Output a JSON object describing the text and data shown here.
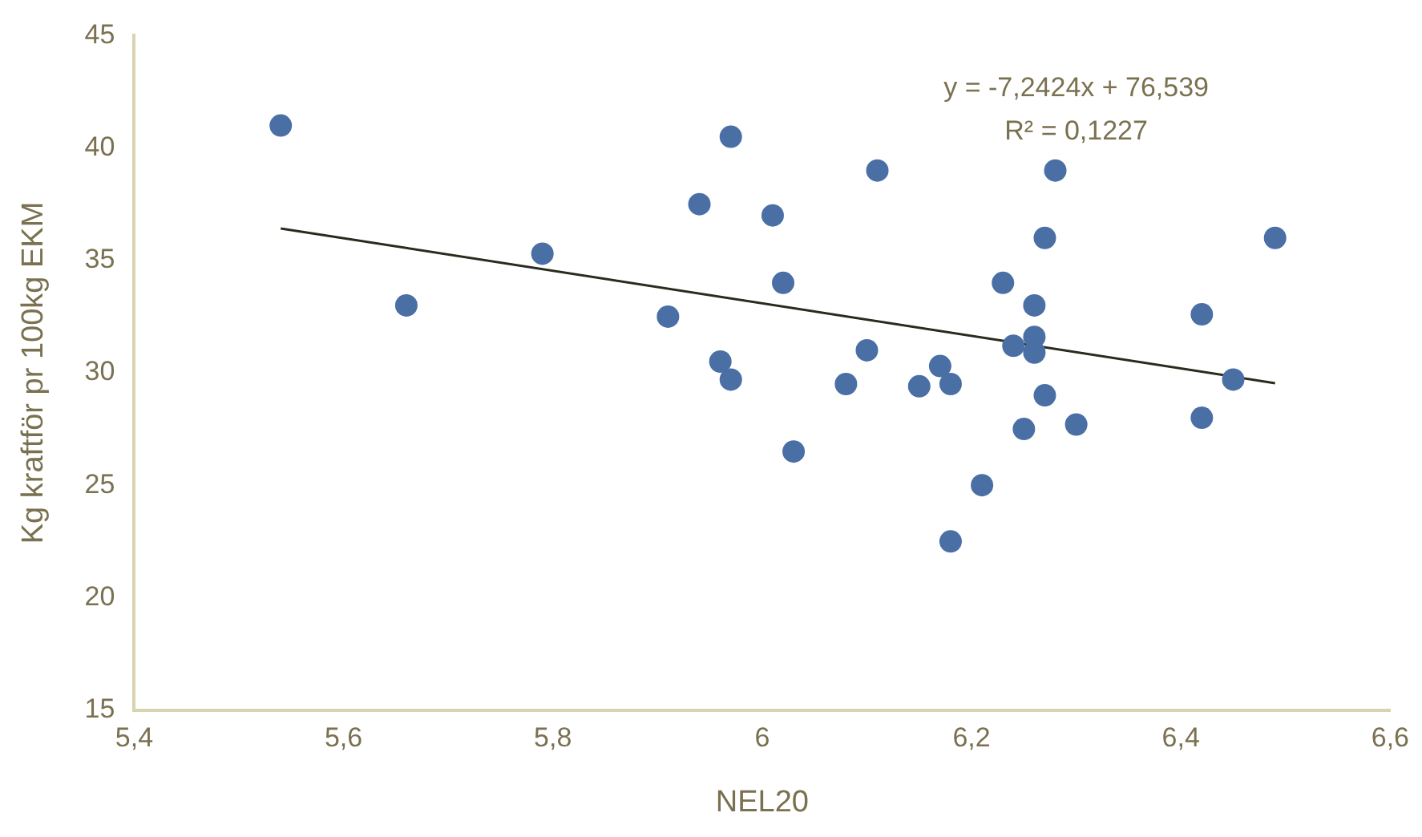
{
  "chart_data": {
    "type": "scatter",
    "xlabel": "NEL20",
    "ylabel": "Kg kraftför pr 100kg EKM",
    "annotations": [
      "y = -7,2424x + 76,539",
      "R² = 0,1227"
    ],
    "xlim": [
      5.4,
      6.6
    ],
    "xticks": [
      {
        "value": 5.4,
        "label": "5,4"
      },
      {
        "value": 5.6,
        "label": "5,6"
      },
      {
        "value": 5.8,
        "label": "5,8"
      },
      6,
      {
        "value": 6.2,
        "label": "6,2"
      },
      {
        "value": 6.4,
        "label": "6,4"
      },
      {
        "value": 6.6,
        "label": "6,6"
      }
    ],
    "ylim": [
      15,
      45
    ],
    "yticks": [
      15,
      20,
      25,
      30,
      35,
      40,
      45
    ],
    "grid": false,
    "legend": false,
    "marker": "circle",
    "series": [
      {
        "color": "#4a6fa5",
        "x": [
          5.54,
          5.66,
          5.79,
          5.91,
          5.94,
          5.96,
          5.97,
          5.97,
          6.01,
          6.02,
          6.03,
          6.08,
          6.1,
          6.11,
          6.15,
          6.17,
          6.18,
          6.18,
          6.21,
          6.23,
          6.24,
          6.25,
          6.26,
          6.26,
          6.26,
          6.27,
          6.27,
          6.28,
          6.3,
          6.42,
          6.42,
          6.45,
          6.49
        ],
        "values": [
          41,
          33,
          35.3,
          32.5,
          37.5,
          30.5,
          40.5,
          29.7,
          37,
          34,
          26.5,
          29.5,
          31,
          39,
          29.4,
          30.3,
          29.5,
          22.5,
          25,
          34,
          31.2,
          27.5,
          33,
          31.6,
          30.9,
          29,
          36,
          39,
          27.7,
          32.6,
          28,
          29.7,
          36
        ]
      },
      {
        "type": "line",
        "color": "#2b2a1c",
        "marker": "none",
        "x": [
          5.54,
          6.49
        ],
        "values": [
          36.42,
          29.54
        ]
      }
    ]
  }
}
